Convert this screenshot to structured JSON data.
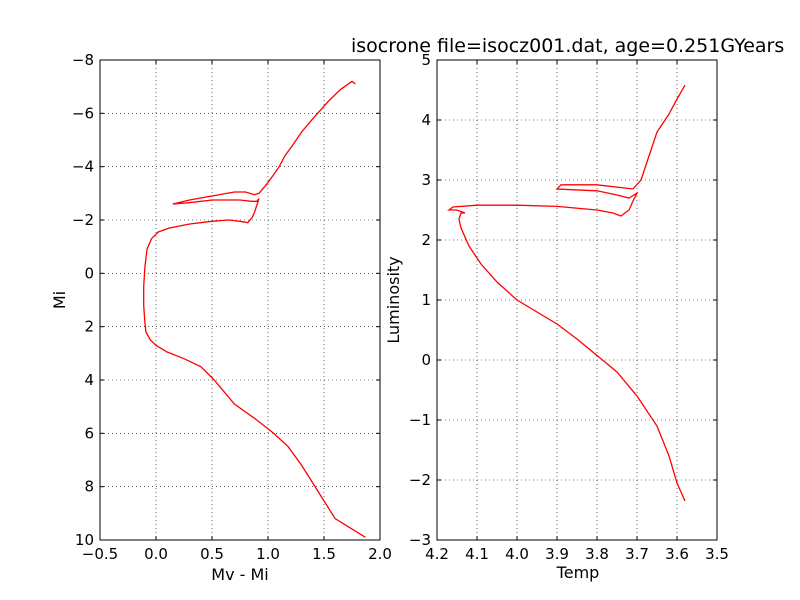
{
  "chart_data": [
    {
      "type": "line",
      "title": "",
      "xlabel": "Mv - Mi",
      "ylabel": "Mi",
      "xlim": [
        -0.5,
        2.0
      ],
      "ylim": [
        10,
        -8
      ],
      "y_inverted": true,
      "grid": true,
      "xticks": [
        -0.5,
        0.0,
        0.5,
        1.0,
        1.5,
        2.0
      ],
      "xtick_labels": [
        "−0.5",
        "0.0",
        "0.5",
        "1.0",
        "1.5",
        "2.0"
      ],
      "yticks": [
        -8,
        -6,
        -4,
        -2,
        0,
        2,
        4,
        6,
        8,
        10
      ],
      "ytick_labels": [
        "−8",
        "−6",
        "−4",
        "−2",
        "0",
        "2",
        "4",
        "6",
        "8",
        "10"
      ],
      "color": "#ff0000",
      "x": [
        1.87,
        1.6,
        1.45,
        1.3,
        1.18,
        1.05,
        0.9,
        0.7,
        0.6,
        0.52,
        0.4,
        0.25,
        0.1,
        0.0,
        -0.05,
        -0.09,
        -0.1,
        -0.11,
        -0.11,
        -0.1,
        -0.08,
        -0.04,
        0.02,
        0.12,
        0.3,
        0.5,
        0.65,
        0.75,
        0.82,
        0.86,
        0.88,
        0.9,
        0.92,
        0.9,
        0.85,
        0.75,
        0.5,
        0.3,
        0.15,
        0.3,
        0.5,
        0.7,
        0.8,
        0.88,
        0.92,
        0.98,
        1.05,
        1.1,
        1.15,
        1.22,
        1.3,
        1.4,
        1.55,
        1.65,
        1.75,
        1.78
      ],
      "y": [
        9.9,
        9.2,
        8.2,
        7.2,
        6.5,
        6.0,
        5.5,
        4.9,
        4.4,
        4.0,
        3.5,
        3.2,
        2.95,
        2.7,
        2.5,
        2.2,
        1.8,
        1.2,
        0.5,
        -0.2,
        -0.9,
        -1.3,
        -1.55,
        -1.7,
        -1.85,
        -1.95,
        -2.0,
        -1.95,
        -1.9,
        -2.1,
        -2.3,
        -2.55,
        -2.8,
        -2.7,
        -2.7,
        -2.75,
        -2.75,
        -2.65,
        -2.6,
        -2.75,
        -2.9,
        -3.05,
        -3.05,
        -2.95,
        -3.0,
        -3.3,
        -3.7,
        -4.0,
        -4.4,
        -4.8,
        -5.3,
        -5.8,
        -6.5,
        -6.9,
        -7.2,
        -7.1
      ]
    },
    {
      "type": "line",
      "title": "isocrone file=isocz001.dat, age=0.251GYears",
      "xlabel": "Temp",
      "ylabel": "Luminosity",
      "xlim": [
        4.2,
        3.5
      ],
      "ylim": [
        -3,
        5
      ],
      "x_inverted": true,
      "grid": true,
      "xticks": [
        4.2,
        4.1,
        4.0,
        3.9,
        3.8,
        3.7,
        3.6,
        3.5
      ],
      "xtick_labels": [
        "4.2",
        "4.1",
        "4.0",
        "3.9",
        "3.8",
        "3.7",
        "3.6",
        "3.5"
      ],
      "yticks": [
        -3,
        -2,
        -1,
        0,
        1,
        2,
        3,
        4,
        5
      ],
      "ytick_labels": [
        "−3",
        "−2",
        "−1",
        "0",
        "1",
        "2",
        "3",
        "4",
        "5"
      ],
      "color": "#ff0000",
      "x": [
        3.58,
        3.6,
        3.62,
        3.65,
        3.7,
        3.75,
        3.85,
        3.9,
        4.0,
        4.05,
        4.09,
        4.12,
        4.14,
        4.145,
        4.14,
        4.13,
        4.15,
        4.17,
        4.16,
        4.1,
        4.0,
        3.9,
        3.8,
        3.76,
        3.74,
        3.72,
        3.71,
        3.7,
        3.72,
        3.75,
        3.8,
        3.9,
        3.89,
        3.8,
        3.71,
        3.69,
        3.67,
        3.65,
        3.62,
        3.6,
        3.58
      ],
      "y": [
        -2.35,
        -2.05,
        -1.6,
        -1.1,
        -0.6,
        -0.2,
        0.35,
        0.6,
        1.0,
        1.3,
        1.6,
        1.9,
        2.2,
        2.35,
        2.45,
        2.45,
        2.5,
        2.5,
        2.55,
        2.58,
        2.58,
        2.56,
        2.5,
        2.45,
        2.4,
        2.5,
        2.65,
        2.78,
        2.7,
        2.75,
        2.82,
        2.85,
        2.92,
        2.92,
        2.85,
        3.0,
        3.4,
        3.8,
        4.1,
        4.35,
        4.58
      ]
    }
  ]
}
